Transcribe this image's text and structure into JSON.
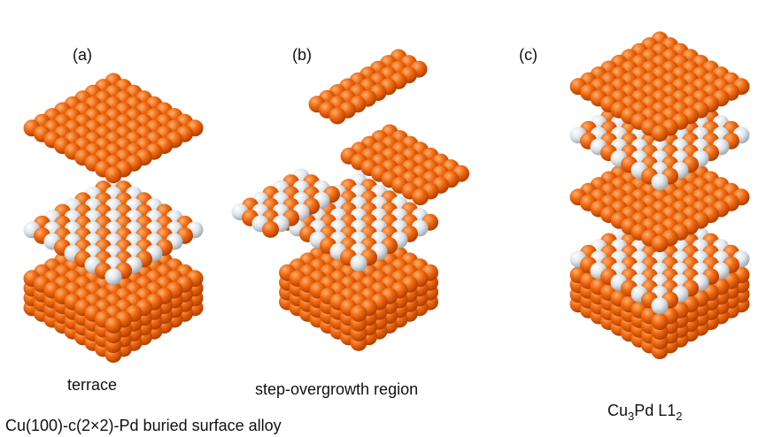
{
  "panels": [
    {
      "label": "(a)",
      "caption": "terrace"
    },
    {
      "label": "(b)",
      "caption": "step-overgrowth region"
    },
    {
      "label": "(c)",
      "caption_parts": [
        "Cu",
        "3",
        "Pd L1",
        "2"
      ]
    }
  ],
  "footer": "Cu(100)-c(2×2)-Pd buried surface alloy"
}
